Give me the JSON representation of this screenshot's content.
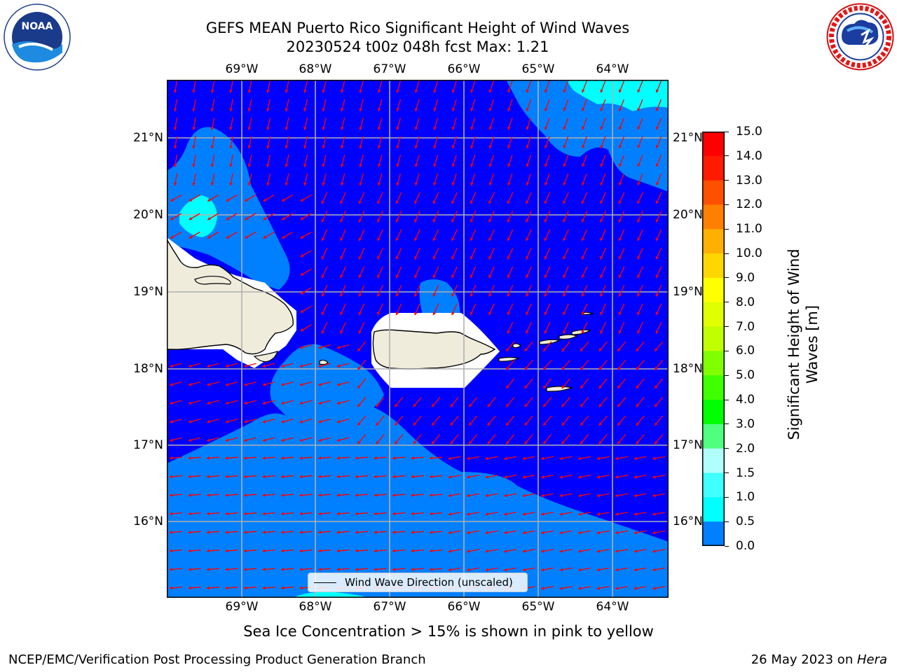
{
  "header": {
    "title_line1": "GEFS MEAN Puerto Rico Significant Height of Wind Waves",
    "title_line2": "20230524 t00z 048h fcst   Max: 1.21"
  },
  "logos": {
    "noaa": {
      "text": "NOAA",
      "ring_text": "NATIONAL OCEANIC AND ATMOSPHERIC ADMINISTRATION · U.S. DEPARTMENT OF COMMERCE"
    },
    "nws": {
      "ring_text": "NATIONAL WEATHER SERVICE"
    }
  },
  "map": {
    "lon_labels": [
      "69°W",
      "68°W",
      "67°W",
      "66°W",
      "65°W",
      "64°W"
    ],
    "lat_labels": [
      "21°N",
      "20°N",
      "19°N",
      "18°N",
      "17°N",
      "16°N"
    ],
    "legend_label": "Wind Wave Direction (unscaled)",
    "land_color": "#efecdc",
    "gridline_color": "#b0b0b0",
    "arrow_color": "#ff0000"
  },
  "colorbar": {
    "label": "Significant Height of Wind Waves [m]",
    "label_line1": "Significant Height of Wind",
    "label_line2": "Waves [m]",
    "ticks": [
      "15.0",
      "14.0",
      "13.0",
      "12.0",
      "11.0",
      "10.0",
      "9.0",
      "8.0",
      "7.0",
      "6.0",
      "5.0",
      "4.0",
      "3.0",
      "2.0",
      "1.5",
      "1.0",
      "0.5",
      "0.0"
    ],
    "levels": [
      0.0,
      0.5,
      1.0,
      1.5,
      2.0,
      3.0,
      4.0,
      5.0,
      6.0,
      7.0,
      8.0,
      9.0,
      10.0,
      11.0,
      12.0,
      13.0,
      14.0,
      15.0
    ],
    "colors": [
      "#0000ff",
      "#0080ff",
      "#00ffff",
      "#40ffff",
      "#80ffff",
      "#b0ffff",
      "#50ff80",
      "#00ff00",
      "#40ff00",
      "#80ff00",
      "#c0ff00",
      "#e0ff00",
      "#ffff00",
      "#ffd700",
      "#ffb000",
      "#ff8000",
      "#ff5000",
      "#ff1a00",
      "#ff0000"
    ]
  },
  "footer": {
    "note": "Sea Ice Concentration > 15% is shown in pink to yellow",
    "left": "NCEP/EMC/Verification Post Processing Product Generation Branch",
    "right_prefix": "26 May 2023 on ",
    "right_host": "Hera"
  }
}
